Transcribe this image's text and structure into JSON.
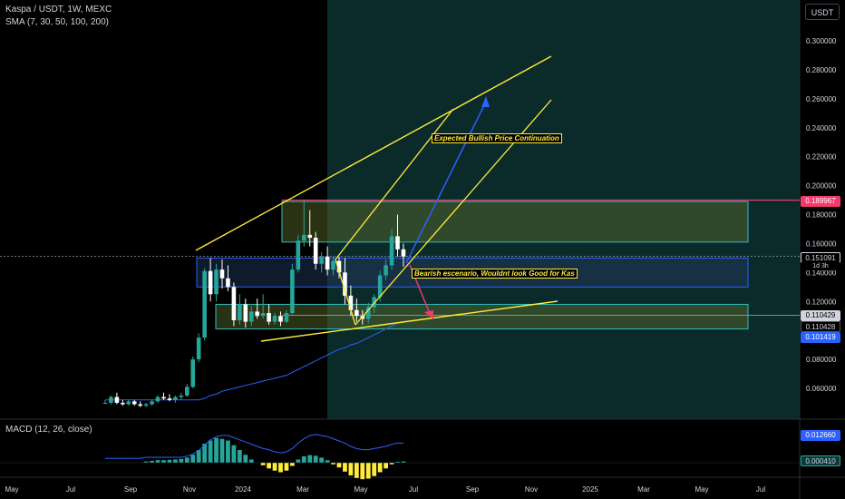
{
  "header": {
    "title": "Kaspa / USDT, 1W, MEXC",
    "indicator": "SMA (7, 30, 50, 100, 200)",
    "macd": "MACD (12, 26, close)",
    "unit": "USDT"
  },
  "colors": {
    "up": "#26a69a",
    "down": "#ffffff",
    "trend": "#ffeb3b",
    "zone_border": "#2fbcc0",
    "zone_fill": "#5a6e2a",
    "resistance": "#f23a6b",
    "bull_arrow": "#2962ff",
    "bear_arrow": "#f23a6b",
    "sma": "#2962ff",
    "macd_pos": "#26a69a",
    "macd_neg": "#ffeb3b"
  },
  "annotations": {
    "bullish": "Expected Bullish Price Continuation",
    "bearish": "Bearish escenario, Wouldnt look Good for Kas"
  },
  "price_tags": {
    "resistance": "0.189967",
    "current": "0.151091",
    "countdown": "1d 3h",
    "lower_a": "0.110429",
    "lower_b": "0.110428",
    "support": "0.101419",
    "macd_a": "0.012660",
    "macd_b": "0.000410"
  },
  "chart_data": {
    "type": "candlestick",
    "x_axis_labels": [
      "May",
      "Jul",
      "Sep",
      "Nov",
      "2024",
      "Mar",
      "May",
      "Jul",
      "Sep",
      "Nov",
      "2025",
      "Mar",
      "May",
      "Jul"
    ],
    "y_axis_ticks": [
      "0.300000",
      "0.280000",
      "0.260000",
      "0.240000",
      "0.220000",
      "0.200000",
      "0.180000",
      "0.160000",
      "0.140000",
      "0.120000",
      "0.080000",
      "0.060000"
    ],
    "ylim": [
      0.042,
      0.322
    ],
    "candles": [
      {
        "o": 0.05,
        "h": 0.052,
        "l": 0.049,
        "c": 0.05
      },
      {
        "o": 0.05,
        "h": 0.055,
        "l": 0.049,
        "c": 0.054
      },
      {
        "o": 0.054,
        "h": 0.057,
        "l": 0.049,
        "c": 0.05
      },
      {
        "o": 0.05,
        "h": 0.052,
        "l": 0.048,
        "c": 0.049
      },
      {
        "o": 0.049,
        "h": 0.052,
        "l": 0.048,
        "c": 0.051
      },
      {
        "o": 0.051,
        "h": 0.052,
        "l": 0.048,
        "c": 0.049
      },
      {
        "o": 0.049,
        "h": 0.051,
        "l": 0.047,
        "c": 0.048
      },
      {
        "o": 0.048,
        "h": 0.05,
        "l": 0.047,
        "c": 0.049
      },
      {
        "o": 0.049,
        "h": 0.052,
        "l": 0.048,
        "c": 0.051
      },
      {
        "o": 0.051,
        "h": 0.055,
        "l": 0.05,
        "c": 0.054
      },
      {
        "o": 0.054,
        "h": 0.057,
        "l": 0.052,
        "c": 0.053
      },
      {
        "o": 0.053,
        "h": 0.056,
        "l": 0.051,
        "c": 0.052
      },
      {
        "o": 0.052,
        "h": 0.055,
        "l": 0.05,
        "c": 0.054
      },
      {
        "o": 0.054,
        "h": 0.057,
        "l": 0.052,
        "c": 0.055
      },
      {
        "o": 0.055,
        "h": 0.063,
        "l": 0.054,
        "c": 0.061
      },
      {
        "o": 0.061,
        "h": 0.082,
        "l": 0.06,
        "c": 0.08
      },
      {
        "o": 0.08,
        "h": 0.098,
        "l": 0.078,
        "c": 0.095
      },
      {
        "o": 0.095,
        "h": 0.143,
        "l": 0.093,
        "c": 0.141
      },
      {
        "o": 0.141,
        "h": 0.15,
        "l": 0.12,
        "c": 0.125
      },
      {
        "o": 0.125,
        "h": 0.146,
        "l": 0.12,
        "c": 0.142
      },
      {
        "o": 0.142,
        "h": 0.149,
        "l": 0.129,
        "c": 0.136
      },
      {
        "o": 0.136,
        "h": 0.145,
        "l": 0.127,
        "c": 0.13
      },
      {
        "o": 0.13,
        "h": 0.133,
        "l": 0.103,
        "c": 0.107
      },
      {
        "o": 0.107,
        "h": 0.125,
        "l": 0.104,
        "c": 0.118
      },
      {
        "o": 0.118,
        "h": 0.122,
        "l": 0.102,
        "c": 0.106
      },
      {
        "o": 0.106,
        "h": 0.117,
        "l": 0.103,
        "c": 0.113
      },
      {
        "o": 0.113,
        "h": 0.122,
        "l": 0.108,
        "c": 0.11
      },
      {
        "o": 0.11,
        "h": 0.125,
        "l": 0.108,
        "c": 0.112
      },
      {
        "o": 0.112,
        "h": 0.118,
        "l": 0.104,
        "c": 0.106
      },
      {
        "o": 0.106,
        "h": 0.112,
        "l": 0.104,
        "c": 0.11
      },
      {
        "o": 0.11,
        "h": 0.113,
        "l": 0.103,
        "c": 0.106
      },
      {
        "o": 0.106,
        "h": 0.114,
        "l": 0.105,
        "c": 0.112
      },
      {
        "o": 0.112,
        "h": 0.146,
        "l": 0.111,
        "c": 0.142
      },
      {
        "o": 0.142,
        "h": 0.166,
        "l": 0.14,
        "c": 0.162
      },
      {
        "o": 0.162,
        "h": 0.19,
        "l": 0.158,
        "c": 0.166
      },
      {
        "o": 0.166,
        "h": 0.183,
        "l": 0.158,
        "c": 0.164
      },
      {
        "o": 0.164,
        "h": 0.168,
        "l": 0.142,
        "c": 0.146
      },
      {
        "o": 0.146,
        "h": 0.154,
        "l": 0.14,
        "c": 0.151
      },
      {
        "o": 0.151,
        "h": 0.158,
        "l": 0.138,
        "c": 0.142
      },
      {
        "o": 0.142,
        "h": 0.151,
        "l": 0.138,
        "c": 0.148
      },
      {
        "o": 0.148,
        "h": 0.151,
        "l": 0.136,
        "c": 0.14
      },
      {
        "o": 0.14,
        "h": 0.15,
        "l": 0.118,
        "c": 0.124
      },
      {
        "o": 0.124,
        "h": 0.131,
        "l": 0.11,
        "c": 0.114
      },
      {
        "o": 0.114,
        "h": 0.122,
        "l": 0.106,
        "c": 0.11
      },
      {
        "o": 0.11,
        "h": 0.114,
        "l": 0.104,
        "c": 0.108
      },
      {
        "o": 0.108,
        "h": 0.119,
        "l": 0.105,
        "c": 0.116
      },
      {
        "o": 0.116,
        "h": 0.125,
        "l": 0.112,
        "c": 0.123
      },
      {
        "o": 0.123,
        "h": 0.141,
        "l": 0.12,
        "c": 0.138
      },
      {
        "o": 0.138,
        "h": 0.149,
        "l": 0.135,
        "c": 0.145
      },
      {
        "o": 0.145,
        "h": 0.17,
        "l": 0.142,
        "c": 0.165
      },
      {
        "o": 0.165,
        "h": 0.18,
        "l": 0.151,
        "c": 0.156
      },
      {
        "o": 0.156,
        "h": 0.16,
        "l": 0.144,
        "c": 0.151
      }
    ],
    "sma": [
      0.052,
      0.052,
      0.052,
      0.052,
      0.052,
      0.052,
      0.052,
      0.052,
      0.052,
      0.052,
      0.052,
      0.052,
      0.052,
      0.052,
      0.052,
      0.052,
      0.052,
      0.053,
      0.055,
      0.056,
      0.058,
      0.059,
      0.06,
      0.061,
      0.062,
      0.063,
      0.064,
      0.065,
      0.066,
      0.067,
      0.068,
      0.069,
      0.071,
      0.073,
      0.075,
      0.077,
      0.079,
      0.081,
      0.083,
      0.085,
      0.087,
      0.088,
      0.09,
      0.091,
      0.093,
      0.095,
      0.097,
      0.099,
      0.101,
      0.103,
      0.105,
      0.106
    ],
    "macd_hist": [
      0,
      0,
      0,
      0,
      0,
      0,
      0,
      0.0004,
      0.0006,
      0.0008,
      0.0008,
      0.0009,
      0.001,
      0.0012,
      0.0016,
      0.0025,
      0.004,
      0.006,
      0.007,
      0.0078,
      0.0075,
      0.007,
      0.0055,
      0.004,
      0.0025,
      0.001,
      0,
      -0.0008,
      -0.0018,
      -0.0025,
      -0.003,
      -0.0025,
      -0.001,
      0.001,
      0.002,
      0.0024,
      0.0022,
      0.0016,
      0.0008,
      -0.0005,
      -0.0015,
      -0.0028,
      -0.004,
      -0.0048,
      -0.0052,
      -0.005,
      -0.0042,
      -0.003,
      -0.0018,
      -0.0005,
      0.0003,
      0.0004
    ],
    "macd_line": [
      0.004,
      0.004,
      0.004,
      0.004,
      0.004,
      0.004,
      0.004,
      0.005,
      0.005,
      0.005,
      0.005,
      0.005,
      0.005,
      0.005,
      0.006,
      0.008,
      0.011,
      0.016,
      0.021,
      0.024,
      0.025,
      0.025,
      0.023,
      0.021,
      0.019,
      0.017,
      0.015,
      0.013,
      0.012,
      0.01,
      0.009,
      0.01,
      0.013,
      0.018,
      0.022,
      0.025,
      0.026,
      0.025,
      0.024,
      0.022,
      0.02,
      0.018,
      0.015,
      0.013,
      0.012,
      0.012,
      0.013,
      0.014,
      0.015,
      0.017,
      0.018,
      0.018
    ]
  }
}
